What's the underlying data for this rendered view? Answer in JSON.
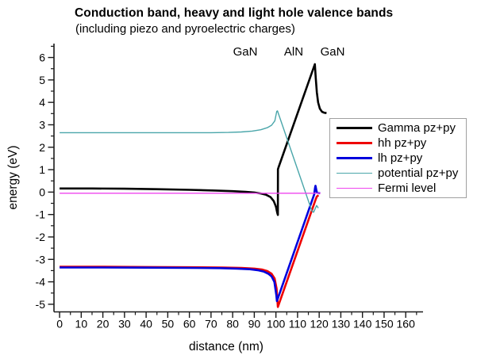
{
  "chart_data": {
    "type": "line",
    "title": "Conduction band, heavy and light hole valence bands",
    "subtitle": "(including piezo and pyroelectric charges)",
    "xlabel": "distance (nm)",
    "ylabel": "energy (eV)",
    "xlim": [
      -2.6,
      168
    ],
    "ylim": [
      -5.34,
      6.62
    ],
    "x_major_ticks": [
      0,
      10,
      20,
      30,
      40,
      50,
      60,
      70,
      80,
      90,
      100,
      110,
      120,
      130,
      140,
      150,
      160
    ],
    "x_minor_ticks": [
      5,
      15,
      25,
      35,
      45,
      55,
      65,
      75,
      85,
      95,
      105,
      115,
      125,
      135,
      145,
      155,
      165
    ],
    "y_major_ticks": [
      -5,
      -4,
      -3,
      -2,
      -1,
      0,
      1,
      2,
      3,
      4,
      5,
      6
    ],
    "y_minor_ticks": [
      -4.5,
      -3.5,
      -2.5,
      -1.5,
      -0.5,
      0.5,
      1.5,
      2.5,
      3.5,
      4.5,
      5.5,
      6.5
    ],
    "grid": false,
    "legend_position": "right-middle",
    "axis_color": "#1a1a1a",
    "layer_labels": [
      {
        "text": "GaN",
        "x_nm": 86
      },
      {
        "text": "AlN",
        "x_nm": 108.3
      },
      {
        "text": "GaN",
        "x_nm": 126
      }
    ],
    "series": [
      {
        "name": "Gamma pz+py",
        "color": "#000000",
        "width": 2.6,
        "points": [
          [
            0,
            0.16
          ],
          [
            15,
            0.16
          ],
          [
            30,
            0.15
          ],
          [
            45,
            0.13
          ],
          [
            60,
            0.1
          ],
          [
            72,
            0.07
          ],
          [
            80,
            0.04
          ],
          [
            86,
            0.01
          ],
          [
            90,
            -0.02
          ],
          [
            93,
            -0.06
          ],
          [
            95.5,
            -0.12
          ],
          [
            97.5,
            -0.22
          ],
          [
            99,
            -0.4
          ],
          [
            100,
            -0.65
          ],
          [
            100.6,
            -0.92
          ],
          [
            100.9,
            -1.02
          ],
          [
            100.95,
            1.02
          ],
          [
            101.3,
            1.13
          ],
          [
            118,
            5.7
          ],
          [
            118.4,
            5.1
          ],
          [
            118.9,
            4.45
          ],
          [
            119.5,
            4.0
          ],
          [
            120.3,
            3.72
          ],
          [
            121.3,
            3.58
          ],
          [
            122.3,
            3.54
          ],
          [
            123.4,
            3.52
          ]
        ]
      },
      {
        "name": "hh pz+py",
        "color": "#ee0000",
        "width": 2.6,
        "points": [
          [
            0,
            -3.33
          ],
          [
            20,
            -3.33
          ],
          [
            40,
            -3.34
          ],
          [
            60,
            -3.35
          ],
          [
            75,
            -3.36
          ],
          [
            84,
            -3.38
          ],
          [
            90,
            -3.41
          ],
          [
            93.5,
            -3.45
          ],
          [
            96,
            -3.52
          ],
          [
            98,
            -3.64
          ],
          [
            99.4,
            -3.85
          ],
          [
            100.3,
            -4.3
          ],
          [
            100.9,
            -5.12
          ],
          [
            118.4,
            -0.32
          ],
          [
            118.9,
            -0.2
          ],
          [
            119.7,
            -0.14
          ]
        ]
      },
      {
        "name": "lh pz+py",
        "color": "#0000dd",
        "width": 2.6,
        "points": [
          [
            0,
            -3.36
          ],
          [
            20,
            -3.36
          ],
          [
            40,
            -3.37
          ],
          [
            60,
            -3.38
          ],
          [
            74,
            -3.39
          ],
          [
            82,
            -3.41
          ],
          [
            88,
            -3.44
          ],
          [
            92,
            -3.49
          ],
          [
            94.5,
            -3.55
          ],
          [
            96.5,
            -3.64
          ],
          [
            98,
            -3.76
          ],
          [
            99.3,
            -4.0
          ],
          [
            100.2,
            -4.6
          ],
          [
            100.45,
            -4.86
          ],
          [
            117.7,
            -0.1
          ],
          [
            118.05,
            0.18
          ],
          [
            118.3,
            0.28
          ],
          [
            118.65,
            0.1
          ],
          [
            119.0,
            -0.03
          ],
          [
            120.4,
            -0.05
          ]
        ]
      },
      {
        "name": "potential pz+py",
        "color": "#4aa6aa",
        "width": 1.4,
        "points": [
          [
            0,
            2.65
          ],
          [
            30,
            2.65
          ],
          [
            55,
            2.65
          ],
          [
            70,
            2.65
          ],
          [
            78,
            2.66
          ],
          [
            84,
            2.68
          ],
          [
            89,
            2.72
          ],
          [
            93,
            2.78
          ],
          [
            96,
            2.87
          ],
          [
            98,
            2.98
          ],
          [
            99.5,
            3.18
          ],
          [
            100.4,
            3.6
          ],
          [
            100.7,
            3.62
          ],
          [
            116.6,
            -0.84
          ],
          [
            117.4,
            -0.9
          ],
          [
            118.8,
            -0.6
          ],
          [
            119.6,
            -0.71
          ]
        ]
      },
      {
        "name": "Fermi level",
        "color": "#ee44ee",
        "width": 1.4,
        "points": [
          [
            0,
            -0.05
          ],
          [
            120.6,
            -0.05
          ]
        ]
      }
    ]
  }
}
